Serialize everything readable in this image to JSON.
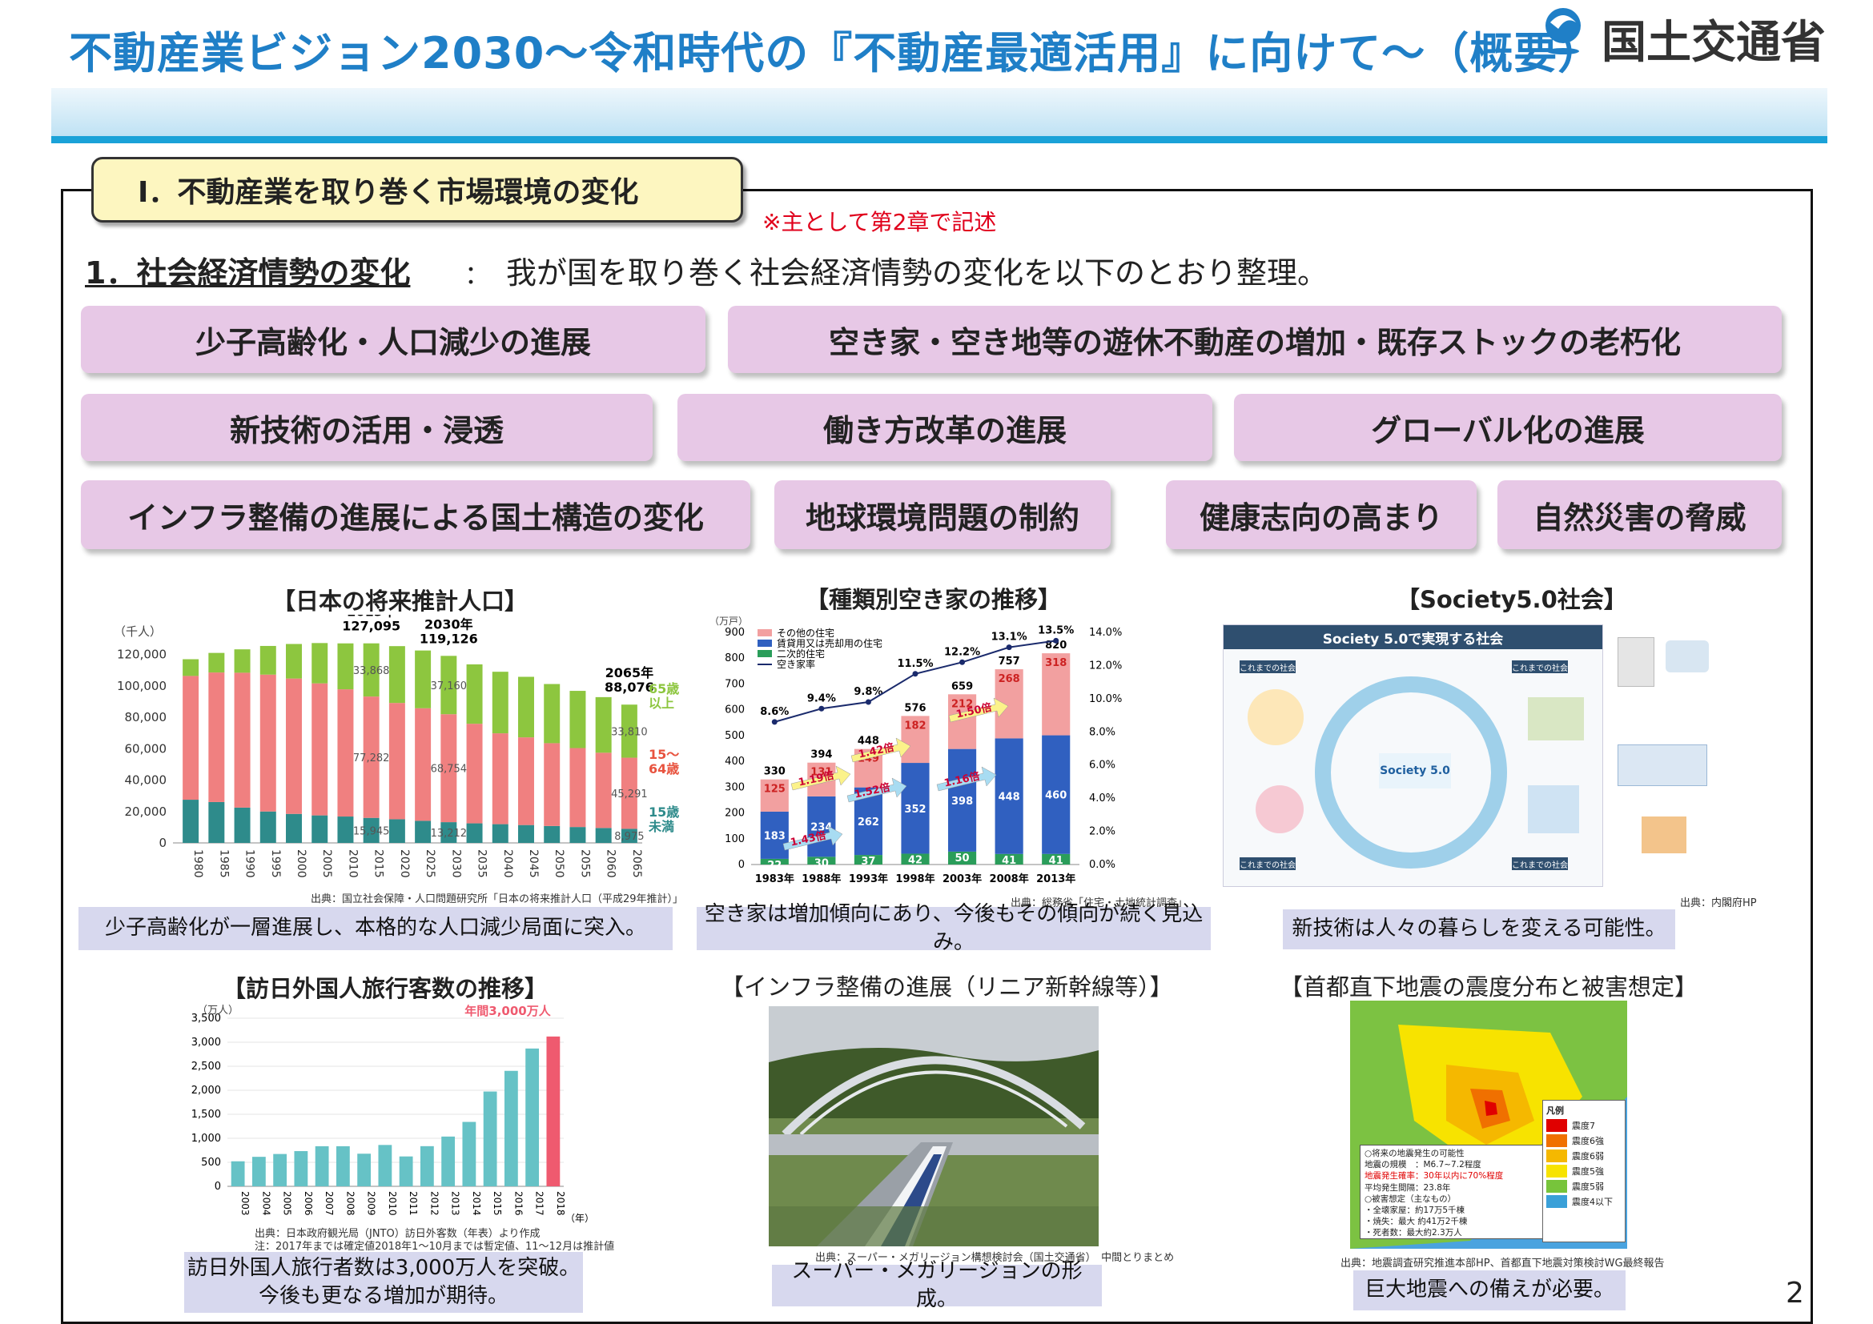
{
  "header": {
    "title": "不動産業ビジョン2030～令和時代の『不動産最適活用』に向けて～（概要）",
    "ministry": "国土交通省"
  },
  "section": {
    "heading": "Ⅰ．不動産業を取り巻く市場環境の変化",
    "note": "※主として第2章で記述",
    "sub_heading": "1．社会経済情勢の変化",
    "sub_sep": "：",
    "sub_text": "我が国を取り巻く社会経済情勢の変化を以下のとおり整理。"
  },
  "topics": [
    "少子高齢化・人口減少の進展",
    "空き家・空き地等の遊休不動産の増加・既存ストックの老朽化",
    "新技術の活用・浸透",
    "働き方改革の進展",
    "グローバル化の進展",
    "インフラ整備の進展による国土構造の変化",
    "地球環境問題の制約",
    "健康志向の高まり",
    "自然災害の脅威"
  ],
  "panels": {
    "population": {
      "title": "【日本の将来推計人口】",
      "source": "出典：国立社会保障・人口問題研究所「日本の将来推計人口（平成29年推計）」",
      "caption": "少子高齢化が一層進展し、本格的な人口減少局面に突入。"
    },
    "akiya": {
      "title": "【種類別空き家の推移】",
      "source": "出典：総務省「住宅・土地統計調査」",
      "caption": "空き家は増加傾向にあり、今後もその傾向が続く見込み。"
    },
    "society": {
      "title": "【Society5.0社会】",
      "source": "出典：内閣府HP",
      "caption": "新技術は人々の暮らしを変える可能性。",
      "diagram_title": "Society 5.0で実現する社会",
      "center_label": "Society 5.0",
      "tag": "これまでの社会"
    },
    "tourism": {
      "title": "【訪日外国人旅行客数の推移】",
      "source1": "出典：日本政府観光局（JNTO）訪日外客数（年表）より作成",
      "source2": "注：2017年までは確定値2018年1～10月までは暫定値、11～12月は推計値",
      "caption_line1": "訪日外国人旅行者数は3,000万人を突破。",
      "caption_line2": "今後も更なる増加が期待。"
    },
    "infra": {
      "title": "【インフラ整備の進展（リニア新幹線等）】",
      "source": "出典：スーパー・メガリージョン構想検討会（国土交通省）　中間とりまとめ",
      "caption": "スーパー・メガリージョンの形成。"
    },
    "quake": {
      "title": "【首都直下地震の震度分布と被害想定】",
      "source": "出典：地震調査研究推進本部HP、首都直下地震対策検討WG最終報告",
      "caption": "巨大地震への備えが必要。",
      "legend_title": "凡例",
      "legend_items": [
        "震度7",
        "震度6強",
        "震度6弱",
        "震度5強",
        "震度5弱",
        "震度4以下"
      ],
      "legend_colors": [
        "#e00000",
        "#f07000",
        "#f5b800",
        "#f7e300",
        "#77c43b",
        "#3aa0d8"
      ],
      "info": [
        "○将来の地震発生の可能性",
        "地震の規模　：M6.7~7.2程度",
        "地震発生確率：30年以内に70%程度",
        "平均発生間隔：23.8年",
        "○被害想定（主なもの）",
        "・全壊家屋：約17万5千棟",
        "・焼失：最大 約41万2千棟",
        "・死者数：最大約2.3万人"
      ]
    }
  },
  "page_number": "2",
  "chart_data": [
    {
      "type": "bar",
      "stacked": true,
      "unit": "（千人）",
      "categories": [
        "1980",
        "1985",
        "1990",
        "1995",
        "2000",
        "2005",
        "2010",
        "2015",
        "2020",
        "2025",
        "2030",
        "2035",
        "2040",
        "2045",
        "2050",
        "2055",
        "2060",
        "2065"
      ],
      "series": [
        {
          "name": "15歳未満",
          "color": "#2e8b8b",
          "values": [
            27507,
            26033,
            22486,
            20014,
            18472,
            17521,
            16803,
            15945,
            15075,
            14073,
            13212,
            12457,
            11936,
            11384,
            10767,
            10123,
            9508,
            8975
          ]
        },
        {
          "name": "15～64歳",
          "color": "#f08080",
          "values": [
            78835,
            82506,
            85904,
            87165,
            86220,
            84092,
            81032,
            77282,
            74058,
            71701,
            68754,
            63430,
            57866,
            55844,
            52750,
            50276,
            47928,
            45291
          ]
        },
        {
          "name": "65歳以上",
          "color": "#8dc63f",
          "values": [
            10647,
            12468,
            14895,
            18261,
            22005,
            25672,
            29246,
            33868,
            36192,
            36771,
            37160,
            37817,
            39206,
            38555,
            37676,
            36437,
            35403,
            33810
          ]
        }
      ],
      "annotations": [
        {
          "label": "2015年",
          "value": "127,095"
        },
        {
          "label": "2030年",
          "value": "119,126"
        },
        {
          "label": "2065年",
          "value": "88,076"
        }
      ],
      "inner_labels": [
        "33,868",
        "37,160",
        "33,810",
        "77,282",
        "68,754",
        "45,291",
        "15,945",
        "13,212",
        "8,975"
      ],
      "legend": [
        "65歳\n以上",
        "15～\n64歳",
        "15歳\n未満"
      ],
      "yticks": [
        "0",
        "20,000",
        "40,000",
        "60,000",
        "80,000",
        "100,000",
        "120,000"
      ],
      "ylim": [
        0,
        130000
      ]
    },
    {
      "type": "bar",
      "stacked": true,
      "unit": "（万戸）",
      "categories": [
        "1983年",
        "1988年",
        "1993年",
        "1998年",
        "2003年",
        "2008年",
        "2013年"
      ],
      "series": [
        {
          "name": "二次的住宅",
          "color": "#2a9d5a",
          "values": [
            22,
            30,
            37,
            42,
            50,
            41,
            41
          ]
        },
        {
          "name": "賃貸用又は売却用の住宅",
          "color": "#3060c0",
          "values": [
            183,
            234,
            262,
            352,
            398,
            448,
            460
          ]
        },
        {
          "name": "その他の住宅",
          "color": "#f2a0a0",
          "values": [
            125,
            131,
            149,
            182,
            212,
            268,
            318
          ]
        },
        {
          "name": "空き家率",
          "color": "#1a2a6c",
          "type": "line",
          "axis": "right",
          "values": [
            8.6,
            9.4,
            9.8,
            11.5,
            12.2,
            13.1,
            13.5
          ],
          "labels": [
            "8.6%",
            "9.4%",
            "9.8%",
            "11.5%",
            "12.2%",
            "13.1%",
            "13.5%"
          ]
        }
      ],
      "totals": [
        330,
        394,
        448,
        576,
        659,
        757,
        820
      ],
      "growth_labels": [
        "1.43倍",
        "1.19倍",
        "1.52倍",
        "1.42倍",
        "1.16倍",
        "1.50倍"
      ],
      "yticks": [
        "0",
        "100",
        "200",
        "300",
        "400",
        "500",
        "600",
        "700",
        "800",
        "900"
      ],
      "y2ticks": [
        "0.0%",
        "2.0%",
        "4.0%",
        "6.0%",
        "8.0%",
        "10.0%",
        "12.0%",
        "14.0%"
      ],
      "ylim": [
        0,
        900
      ],
      "y2lim": [
        0,
        14
      ]
    },
    {
      "type": "bar",
      "unit": "（万人）",
      "categories": [
        "2003",
        "2004",
        "2005",
        "2006",
        "2007",
        "2008",
        "2009",
        "2010",
        "2011",
        "2012",
        "2013",
        "2014",
        "2015",
        "2016",
        "2017",
        "2018"
      ],
      "values": [
        521,
        614,
        673,
        733,
        835,
        835,
        679,
        861,
        622,
        836,
        1036,
        1341,
        1974,
        2404,
        2869,
        3119
      ],
      "highlight_last": true,
      "annotation": "年間3,000万人",
      "xsuffix": "（年）",
      "yticks": [
        "0",
        "500",
        "1,000",
        "1,500",
        "2,000",
        "2,500",
        "3,000",
        "3,500"
      ],
      "ylim": [
        0,
        3500
      ]
    }
  ]
}
